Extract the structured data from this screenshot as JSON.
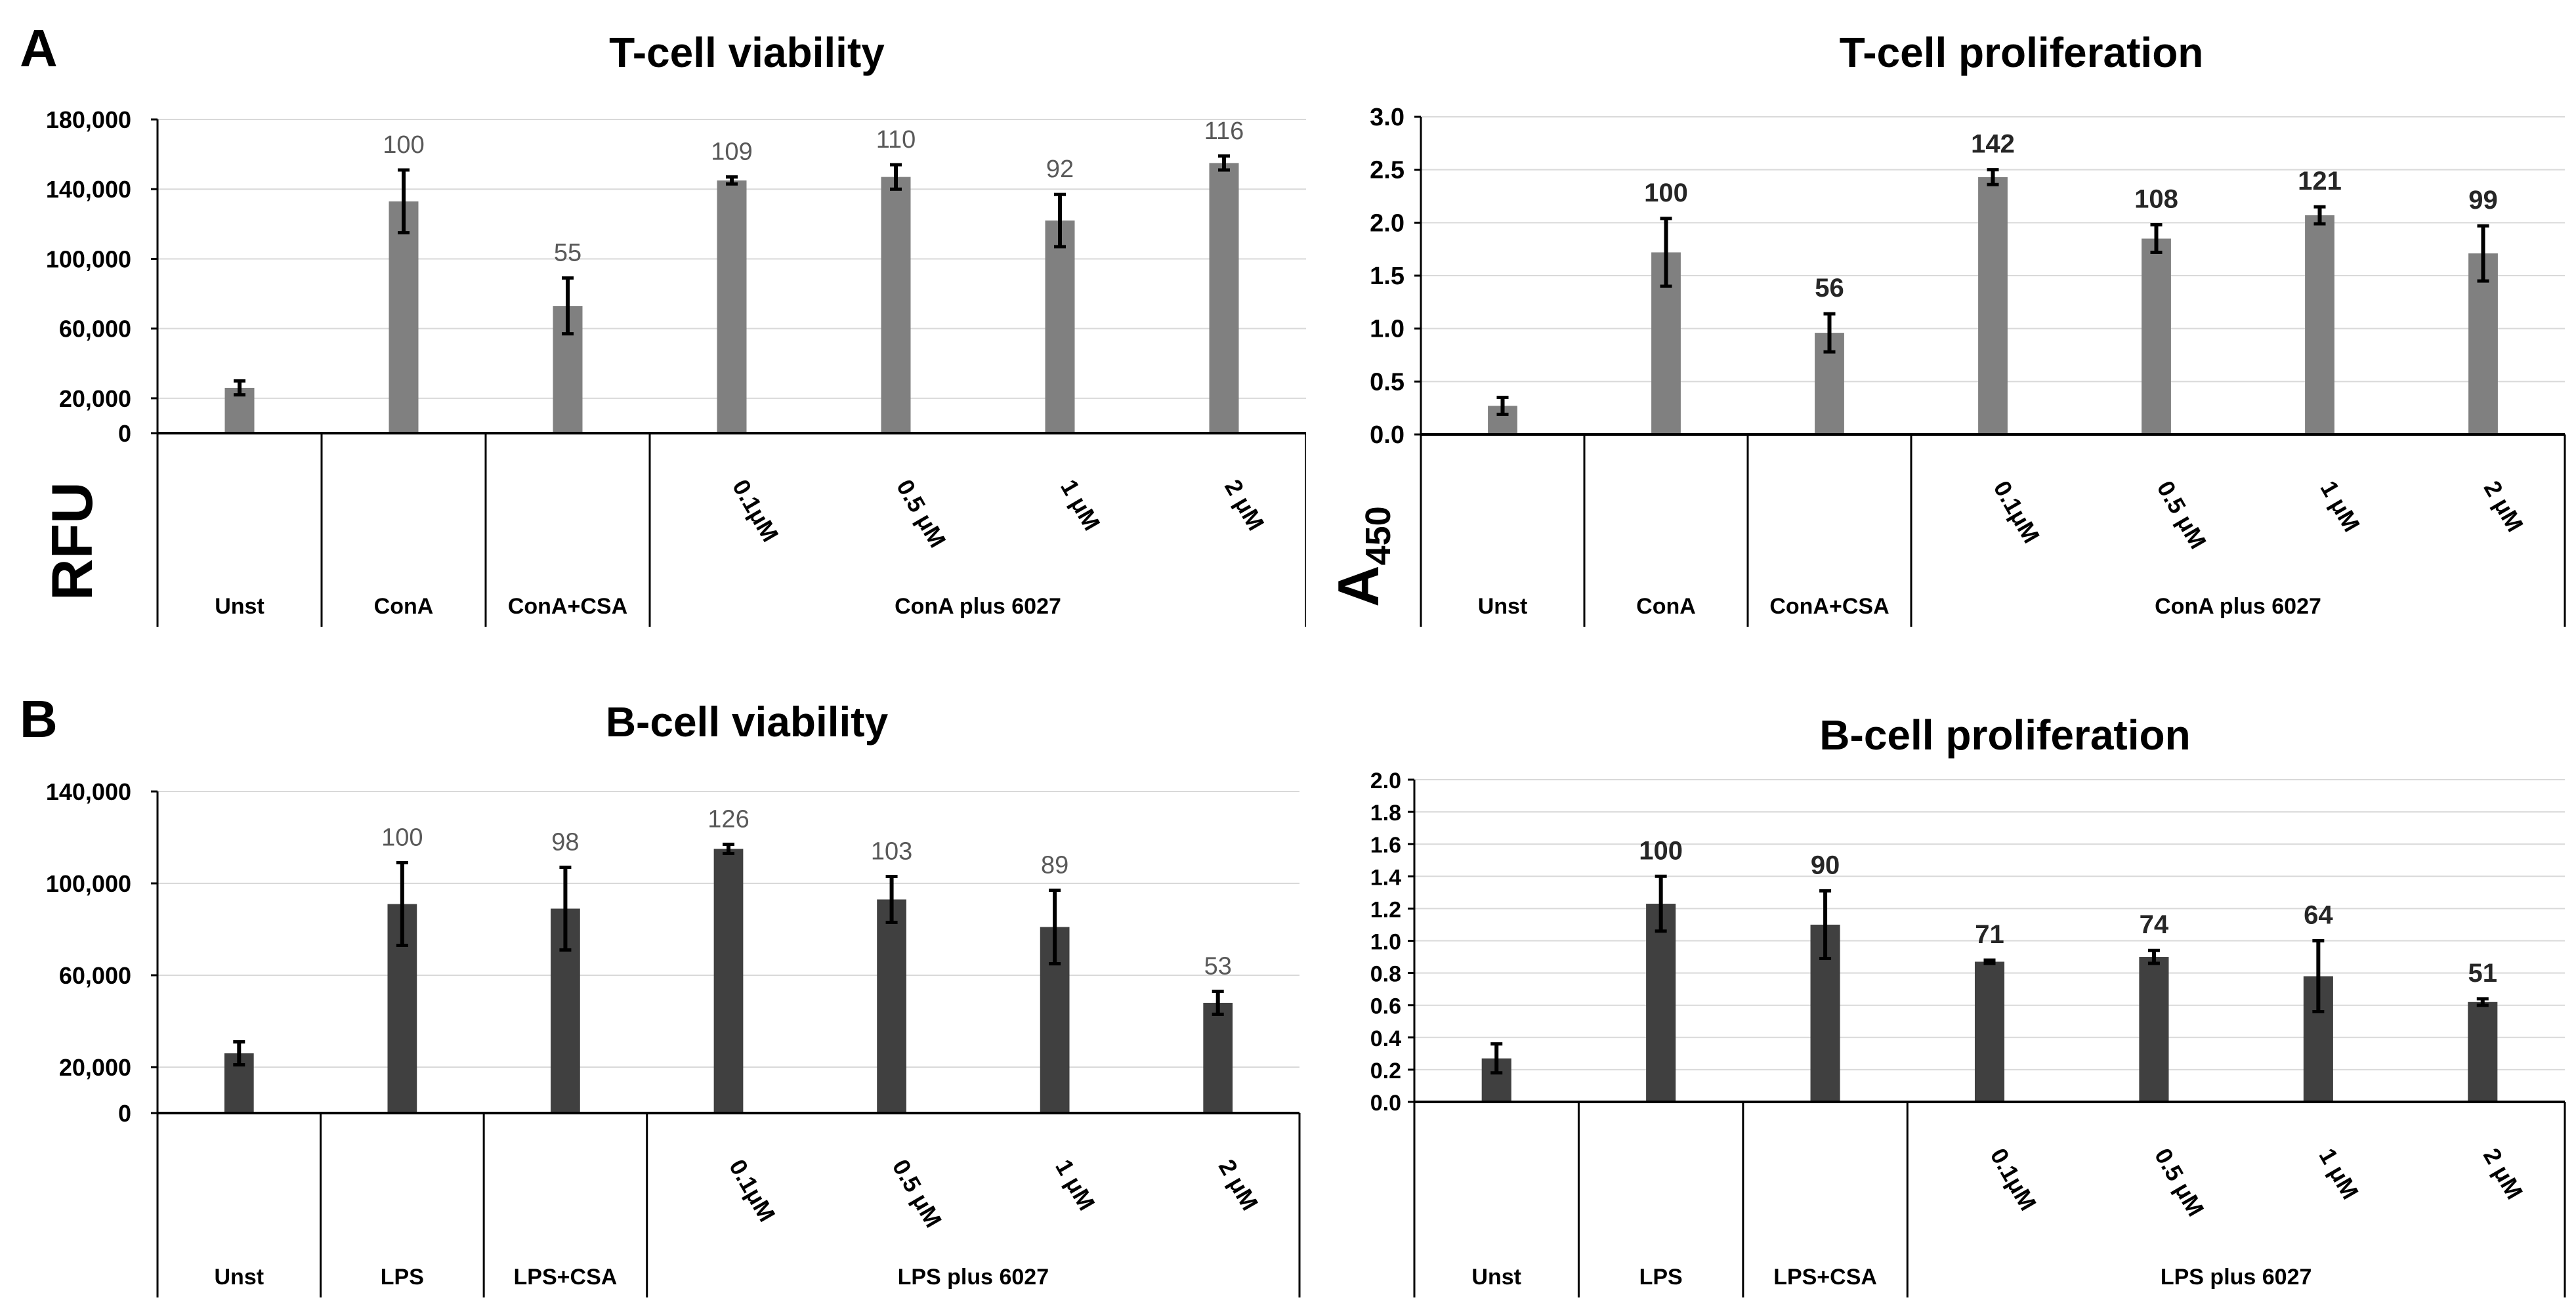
{
  "panels": {
    "a": "A",
    "b": "B"
  },
  "chart_data": [
    {
      "type": "bar",
      "title": "T-cell viability",
      "ylabel": "RFU",
      "ylim": [
        0,
        180000
      ],
      "yticks": [
        0,
        20000,
        60000,
        100000,
        140000,
        180000
      ],
      "ytick_labels": [
        "0",
        "20,000",
        "60,000",
        "100,000",
        "140,000",
        "180,000"
      ],
      "categories": [
        "Unst",
        "ConA",
        "ConA+CSA",
        "0.1μM",
        "0.5 μM",
        "1 μM",
        "2 μM"
      ],
      "values": [
        26000,
        133000,
        73000,
        145000,
        147000,
        122000,
        155000
      ],
      "errors": [
        4000,
        18000,
        16000,
        2000,
        7000,
        15000,
        4000
      ],
      "data_labels": [
        "",
        "100",
        "55",
        "109",
        "110",
        "92",
        "116"
      ],
      "group_label": "ConA plus 6027",
      "bar_color": "#808080",
      "label_color": "#595959",
      "grid": true
    },
    {
      "type": "bar",
      "title": "T-cell proliferation",
      "ylabel": "A450",
      "ylim": [
        0,
        3.0
      ],
      "yticks": [
        0,
        0.5,
        1.0,
        1.5,
        2.0,
        2.5,
        3.0
      ],
      "ytick_labels": [
        "0.0",
        "0.5",
        "1.0",
        "1.5",
        "2.0",
        "2.5",
        "3.0"
      ],
      "categories": [
        "Unst",
        "ConA",
        "ConA+CSA",
        "0.1μM",
        "0.5 μM",
        "1 μM",
        "2 μM"
      ],
      "values": [
        0.27,
        1.72,
        0.96,
        2.43,
        1.85,
        2.07,
        1.71
      ],
      "errors": [
        0.08,
        0.32,
        0.18,
        0.07,
        0.13,
        0.08,
        0.26
      ],
      "data_labels": [
        "",
        "100",
        "56",
        "142",
        "108",
        "121",
        "99"
      ],
      "group_label": "ConA plus 6027",
      "bar_color": "#808080",
      "label_color": "#262626",
      "grid": true
    },
    {
      "type": "bar",
      "title": "B-cell viability",
      "ylabel": "",
      "ylim": [
        0,
        140000
      ],
      "yticks": [
        0,
        20000,
        60000,
        100000,
        140000
      ],
      "ytick_labels": [
        "0",
        "20,000",
        "60,000",
        "100,000",
        "140,000"
      ],
      "categories": [
        "Unst",
        "LPS",
        "LPS+CSA",
        "0.1μM",
        "0.5 μM",
        "1 μM",
        "2 μM"
      ],
      "values": [
        26000,
        91000,
        89000,
        115000,
        93000,
        81000,
        48000
      ],
      "errors": [
        5000,
        18000,
        18000,
        2000,
        10000,
        16000,
        5000
      ],
      "data_labels": [
        "",
        "100",
        "98",
        "126",
        "103",
        "89",
        "53"
      ],
      "group_label": "LPS plus 6027",
      "bar_color": "#404040",
      "label_color": "#595959",
      "grid": true
    },
    {
      "type": "bar",
      "title": "B-cell proliferation",
      "ylabel": "",
      "ylim": [
        0,
        2.0
      ],
      "yticks": [
        0,
        0.2,
        0.4,
        0.6,
        0.8,
        1.0,
        1.2,
        1.4,
        1.6,
        1.8,
        2.0
      ],
      "ytick_labels": [
        "0.0",
        "0.2",
        "0.4",
        "0.6",
        "0.8",
        "1.0",
        "1.2",
        "1.4",
        "1.6",
        "1.8",
        "2.0"
      ],
      "categories": [
        "Unst",
        "LPS",
        "LPS+CSA",
        "0.1μM",
        "0.5 μM",
        "1 μM",
        "2 μM"
      ],
      "values": [
        0.27,
        1.23,
        1.1,
        0.87,
        0.9,
        0.78,
        0.62
      ],
      "errors": [
        0.09,
        0.17,
        0.21,
        0.01,
        0.04,
        0.22,
        0.02
      ],
      "data_labels": [
        "",
        "100",
        "90",
        "71",
        "74",
        "64",
        "51"
      ],
      "group_label": "LPS plus 6027",
      "bar_color": "#404040",
      "label_color": "#262626",
      "grid": true
    }
  ]
}
